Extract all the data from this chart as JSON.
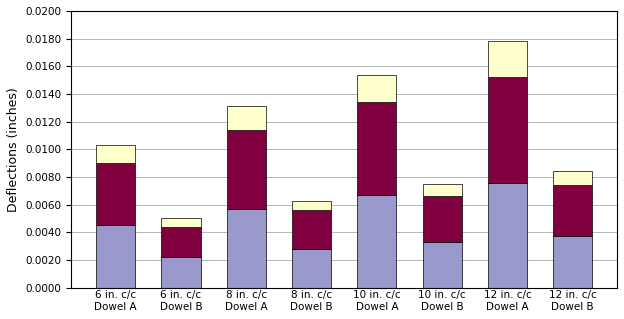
{
  "categories": [
    "6 in. c/c\nDowel A",
    "6 in. c/c\nDowel B",
    "8 in. c/c\nDowel A",
    "8 in. c/c\nDowel B",
    "10 in. c/c\nDowel A",
    "10 in. c/c\nDowel B",
    "12 in. c/c\nDowel A",
    "12 in. c/c\nDowel B"
  ],
  "bending1": [
    0.0045,
    0.0022,
    0.0057,
    0.0028,
    0.0067,
    0.0033,
    0.0076,
    0.0037
  ],
  "bending2": [
    0.0045,
    0.0022,
    0.0057,
    0.0028,
    0.0067,
    0.0033,
    0.0076,
    0.0037
  ],
  "shear": [
    0.0013,
    0.0006,
    0.0017,
    0.0007,
    0.002,
    0.0009,
    0.0026,
    0.001
  ],
  "color_bending1": "#9999cc",
  "color_bending2": "#800040",
  "color_shear": "#ffffcc",
  "ylabel": "Deflections (inches)",
  "ylim": [
    0,
    0.02
  ],
  "yticks": [
    0.0,
    0.002,
    0.004,
    0.006,
    0.008,
    0.01,
    0.012,
    0.014,
    0.016,
    0.018,
    0.02
  ],
  "bar_width": 0.6,
  "background_color": "#ffffff",
  "plot_bg_color": "#ffffff",
  "grid_color": "#aaaaaa",
  "tick_label_fontsize": 7.5,
  "ylabel_fontsize": 9
}
